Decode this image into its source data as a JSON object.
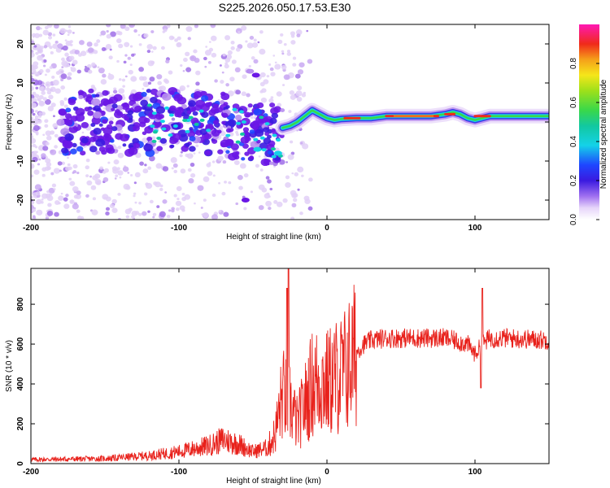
{
  "title": "S225.2026.050.17.53.E30",
  "chart_data": [
    {
      "type": "heatmap",
      "xlabel": "Height of straight line (km)",
      "ylabel": "Frequency (Hz)",
      "xlim": [
        -200,
        150
      ],
      "ylim": [
        -25,
        25
      ],
      "xticks": [
        -200,
        -100,
        0,
        100
      ],
      "yticks": [
        -20,
        -10,
        0,
        10,
        20
      ],
      "colorbar": {
        "label": "Normalized spectral amplitude",
        "range": [
          0,
          1
        ],
        "ticks": [
          "0.0",
          "0.2",
          "0.4",
          "0.6",
          "0.8"
        ]
      },
      "ridge": {
        "x": [
          -30,
          -25,
          -20,
          -15,
          -10,
          -5,
          0,
          5,
          10,
          20,
          30,
          40,
          50,
          60,
          70,
          80,
          85,
          90,
          95,
          100,
          110,
          120,
          130,
          150
        ],
        "y": [
          -1.5,
          -1,
          0,
          1.5,
          3,
          2,
          1,
          0.5,
          0.8,
          1,
          1,
          1.5,
          1.5,
          1.5,
          1.5,
          2,
          2.5,
          2,
          1,
          0.5,
          1.5,
          1.5,
          1.5,
          1.5
        ]
      }
    },
    {
      "type": "line",
      "xlabel": "Height of straight line (km)",
      "ylabel": "SNR (10 * v/v)",
      "xlim": [
        -200,
        150
      ],
      "ylim": [
        0,
        980
      ],
      "xticks": [
        -200,
        -100,
        0,
        100
      ],
      "yticks": [
        0,
        200,
        400,
        600,
        800
      ],
      "color": "#e8211b",
      "series_envelope": {
        "x": [
          -200,
          -150,
          -120,
          -100,
          -80,
          -70,
          -60,
          -50,
          -40,
          -35,
          -30,
          -25,
          -20,
          -15,
          -10,
          -5,
          0,
          5,
          10,
          15,
          20,
          25,
          30,
          40,
          60,
          80,
          95,
          100,
          105,
          110,
          120,
          150
        ],
        "y": [
          20,
          25,
          40,
          60,
          90,
          120,
          100,
          60,
          80,
          150,
          350,
          300,
          200,
          300,
          400,
          420,
          400,
          430,
          450,
          500,
          560,
          600,
          620,
          630,
          630,
          630,
          600,
          550,
          600,
          630,
          630,
          620
        ]
      },
      "spikes": [
        {
          "x": -26,
          "y": 980
        },
        {
          "x": -27,
          "y": 880
        },
        {
          "x": 105,
          "y": 880
        },
        {
          "x": 104,
          "y": 380
        }
      ]
    }
  ]
}
